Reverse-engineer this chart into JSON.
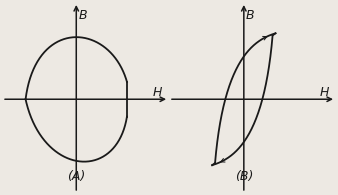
{
  "fig_width": 3.38,
  "fig_height": 1.95,
  "dpi": 100,
  "background_color": "#ede9e3",
  "loop_color": "#1a1a1a",
  "label_A": "(A)",
  "label_B": "(B)",
  "B_label": "B",
  "H_label": "H",
  "font_size_label": 9,
  "font_size_axis_label": 9
}
